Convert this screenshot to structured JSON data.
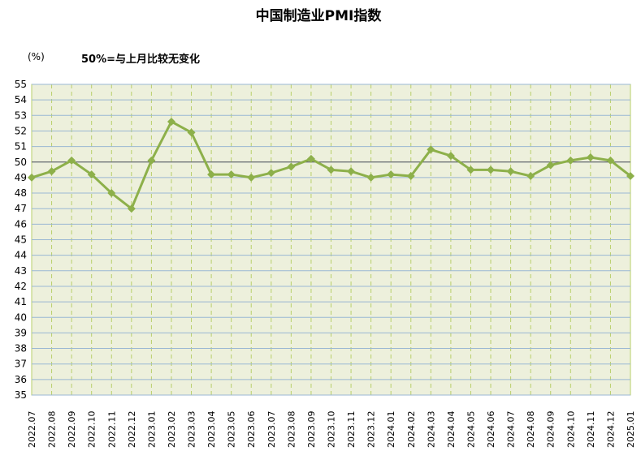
{
  "chart_data": {
    "type": "line",
    "title": "中国制造业PMI指数",
    "unit_label": "(%)",
    "note": "50%=与上月比较无变化",
    "xlabel": "",
    "ylabel": "",
    "ylim": [
      35,
      55
    ],
    "yticks": [
      35,
      36,
      37,
      38,
      39,
      40,
      41,
      42,
      43,
      44,
      45,
      46,
      47,
      48,
      49,
      50,
      51,
      52,
      53,
      54,
      55
    ],
    "reference_line": 50,
    "grid": true,
    "categories": [
      "2022.07",
      "2022.08",
      "2022.09",
      "2022.10",
      "2022.11",
      "2022.12",
      "2023.01",
      "2023.02",
      "2023.03",
      "2023.04",
      "2023.05",
      "2023.06",
      "2023.07",
      "2023.08",
      "2023.09",
      "2023.10",
      "2023.11",
      "2023.12",
      "2024.01",
      "2024.02",
      "2024.03",
      "2024.04",
      "2024.05",
      "2024.06",
      "2024.07",
      "2024.08",
      "2024.09",
      "2024.10",
      "2024.11",
      "2024.12",
      "2025.01"
    ],
    "series": [
      {
        "values": [
          49.0,
          49.4,
          50.1,
          49.2,
          48.0,
          47.0,
          50.1,
          52.6,
          51.9,
          49.2,
          49.2,
          49.0,
          49.3,
          49.7,
          50.2,
          49.5,
          49.4,
          49.0,
          49.2,
          49.1,
          50.8,
          50.4,
          49.5,
          49.5,
          49.4,
          49.1,
          49.8,
          50.1,
          50.3,
          50.1,
          49.1
        ],
        "color": "#8db04a"
      }
    ],
    "colors": {
      "plot_bg": "#edf0dc",
      "h_grid": "#9ab7d3",
      "v_grid": "#b8cf6a",
      "reference": "#555555",
      "line": "#8db04a"
    }
  }
}
